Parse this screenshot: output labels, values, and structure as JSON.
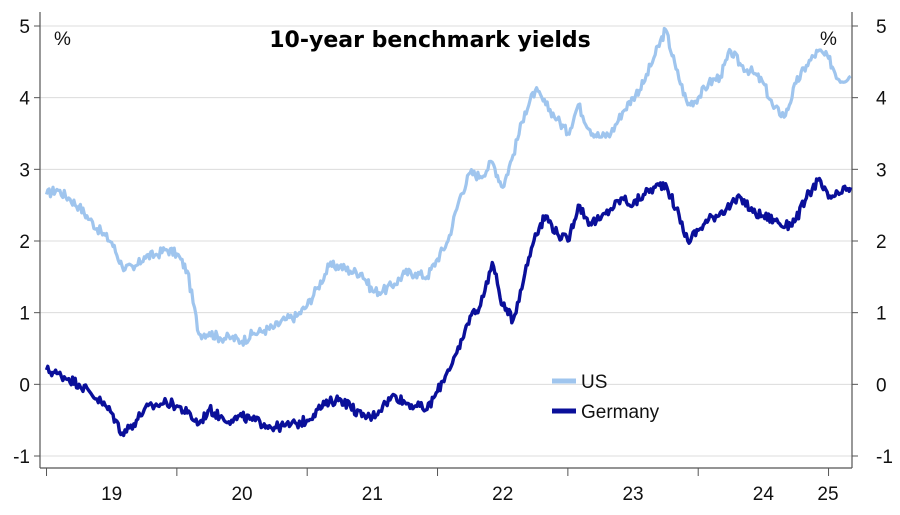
{
  "chart_data": {
    "type": "line",
    "title": "10-year benchmark yields",
    "y_unit_left": "%",
    "y_unit_right": "%",
    "xlabel": "",
    "ylabel": "",
    "x_range": [
      2018.95,
      2025.18
    ],
    "ylim": [
      -1,
      5
    ],
    "y_ticks": [
      -1,
      0,
      1,
      2,
      3,
      4,
      5
    ],
    "y_tick_labels": [
      "-1",
      "0",
      "1",
      "2",
      "3",
      "4",
      "5"
    ],
    "x_ticks": [
      2019.5,
      2020.5,
      2021.5,
      2022.5,
      2023.5,
      2024.5,
      2025.5
    ],
    "x_tick_labels": [
      "19",
      "20",
      "21",
      "22",
      "23",
      "24",
      "25"
    ],
    "grid": "horizontal",
    "legend_position": "lower-right",
    "series": [
      {
        "name": "US",
        "color": "#9fc5ee",
        "x": [
          2019.0,
          2019.08,
          2019.17,
          2019.25,
          2019.33,
          2019.42,
          2019.5,
          2019.58,
          2019.67,
          2019.75,
          2019.83,
          2019.92,
          2020.0,
          2020.08,
          2020.17,
          2020.25,
          2020.33,
          2020.42,
          2020.5,
          2020.58,
          2020.67,
          2020.75,
          2020.83,
          2020.92,
          2021.0,
          2021.08,
          2021.17,
          2021.25,
          2021.33,
          2021.42,
          2021.5,
          2021.58,
          2021.67,
          2021.75,
          2021.83,
          2021.92,
          2022.0,
          2022.08,
          2022.17,
          2022.25,
          2022.33,
          2022.42,
          2022.5,
          2022.58,
          2022.67,
          2022.75,
          2022.83,
          2022.92,
          2023.0,
          2023.08,
          2023.17,
          2023.25,
          2023.33,
          2023.42,
          2023.5,
          2023.58,
          2023.67,
          2023.75,
          2023.83,
          2023.92,
          2024.0,
          2024.08,
          2024.17,
          2024.25,
          2024.33,
          2024.42,
          2024.5,
          2024.58,
          2024.67,
          2024.75,
          2024.83,
          2024.92,
          2025.0,
          2025.08,
          2025.17
        ],
        "values": [
          2.65,
          2.72,
          2.6,
          2.48,
          2.3,
          2.12,
          1.98,
          1.65,
          1.6,
          1.78,
          1.8,
          1.88,
          1.82,
          1.58,
          0.7,
          0.72,
          0.65,
          0.65,
          0.6,
          0.7,
          0.75,
          0.8,
          0.9,
          0.95,
          1.1,
          1.35,
          1.65,
          1.65,
          1.58,
          1.55,
          1.3,
          1.3,
          1.4,
          1.55,
          1.55,
          1.5,
          1.75,
          2.0,
          2.6,
          2.95,
          2.9,
          3.1,
          2.75,
          3.2,
          3.8,
          4.1,
          3.9,
          3.7,
          3.5,
          3.9,
          3.55,
          3.45,
          3.5,
          3.8,
          4.0,
          4.2,
          4.6,
          4.95,
          4.4,
          3.9,
          4.0,
          4.2,
          4.3,
          4.65,
          4.45,
          4.35,
          4.2,
          3.85,
          3.75,
          4.2,
          4.45,
          4.65,
          4.55,
          4.25,
          4.3
        ]
      },
      {
        "name": "Germany",
        "color": "#0a0f9a",
        "x": [
          2019.0,
          2019.08,
          2019.17,
          2019.25,
          2019.33,
          2019.42,
          2019.5,
          2019.58,
          2019.67,
          2019.75,
          2019.83,
          2019.92,
          2020.0,
          2020.08,
          2020.17,
          2020.25,
          2020.33,
          2020.42,
          2020.5,
          2020.58,
          2020.67,
          2020.75,
          2020.83,
          2020.92,
          2021.0,
          2021.08,
          2021.17,
          2021.25,
          2021.33,
          2021.42,
          2021.5,
          2021.58,
          2021.67,
          2021.75,
          2021.83,
          2021.92,
          2022.0,
          2022.08,
          2022.17,
          2022.25,
          2022.33,
          2022.42,
          2022.5,
          2022.58,
          2022.67,
          2022.75,
          2022.83,
          2022.92,
          2023.0,
          2023.08,
          2023.17,
          2023.25,
          2023.33,
          2023.42,
          2023.5,
          2023.58,
          2023.67,
          2023.75,
          2023.83,
          2023.92,
          2024.0,
          2024.08,
          2024.17,
          2024.25,
          2024.33,
          2024.42,
          2024.5,
          2024.58,
          2024.67,
          2024.75,
          2024.83,
          2024.92,
          2025.0,
          2025.08,
          2025.17
        ],
        "values": [
          0.2,
          0.15,
          0.08,
          0.0,
          -0.1,
          -0.25,
          -0.4,
          -0.68,
          -0.55,
          -0.35,
          -0.3,
          -0.25,
          -0.3,
          -0.4,
          -0.55,
          -0.35,
          -0.45,
          -0.5,
          -0.45,
          -0.5,
          -0.55,
          -0.6,
          -0.58,
          -0.55,
          -0.5,
          -0.35,
          -0.25,
          -0.2,
          -0.3,
          -0.45,
          -0.45,
          -0.3,
          -0.15,
          -0.25,
          -0.3,
          -0.35,
          -0.1,
          0.2,
          0.5,
          0.95,
          1.1,
          1.7,
          1.1,
          0.9,
          1.55,
          2.1,
          2.35,
          2.1,
          2.0,
          2.5,
          2.25,
          2.3,
          2.45,
          2.6,
          2.5,
          2.65,
          2.75,
          2.8,
          2.45,
          2.0,
          2.15,
          2.3,
          2.4,
          2.5,
          2.6,
          2.4,
          2.35,
          2.3,
          2.2,
          2.3,
          2.6,
          2.85,
          2.6,
          2.65,
          2.75
        ]
      }
    ]
  }
}
